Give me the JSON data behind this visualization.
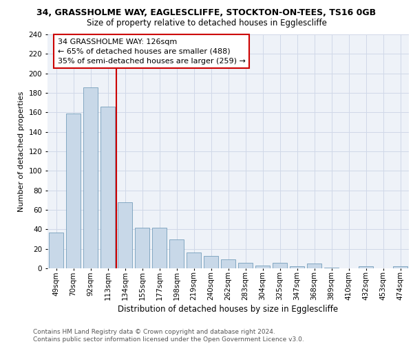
{
  "title1": "34, GRASSHOLME WAY, EAGLESCLIFFE, STOCKTON-ON-TEES, TS16 0GB",
  "title2": "Size of property relative to detached houses in Egglescliffe",
  "xlabel": "Distribution of detached houses by size in Egglescliffe",
  "ylabel": "Number of detached properties",
  "categories": [
    "49sqm",
    "70sqm",
    "92sqm",
    "113sqm",
    "134sqm",
    "155sqm",
    "177sqm",
    "198sqm",
    "219sqm",
    "240sqm",
    "262sqm",
    "283sqm",
    "304sqm",
    "325sqm",
    "347sqm",
    "368sqm",
    "389sqm",
    "410sqm",
    "432sqm",
    "453sqm",
    "474sqm"
  ],
  "values": [
    37,
    159,
    186,
    166,
    68,
    42,
    42,
    30,
    16,
    13,
    9,
    6,
    3,
    6,
    2,
    5,
    1,
    0,
    2,
    0,
    2
  ],
  "bar_color": "#c8d8e8",
  "bar_edge_color": "#6090b0",
  "red_line_x": 3.5,
  "annotation_text_line1": "34 GRASSHOLME WAY: 126sqm",
  "annotation_text_line2": "← 65% of detached houses are smaller (488)",
  "annotation_text_line3": "35% of semi-detached houses are larger (259) →",
  "annotation_box_color": "#cc0000",
  "ylim": [
    0,
    240
  ],
  "yticks": [
    0,
    20,
    40,
    60,
    80,
    100,
    120,
    140,
    160,
    180,
    200,
    220,
    240
  ],
  "grid_color": "#d0d8e8",
  "bg_color": "#eef2f8",
  "footer_text": "Contains HM Land Registry data © Crown copyright and database right 2024.\nContains public sector information licensed under the Open Government Licence v3.0.",
  "title1_fontsize": 9,
  "title2_fontsize": 8.5,
  "xlabel_fontsize": 8.5,
  "ylabel_fontsize": 8,
  "tick_fontsize": 7.5,
  "annotation_fontsize": 8,
  "footer_fontsize": 6.5
}
